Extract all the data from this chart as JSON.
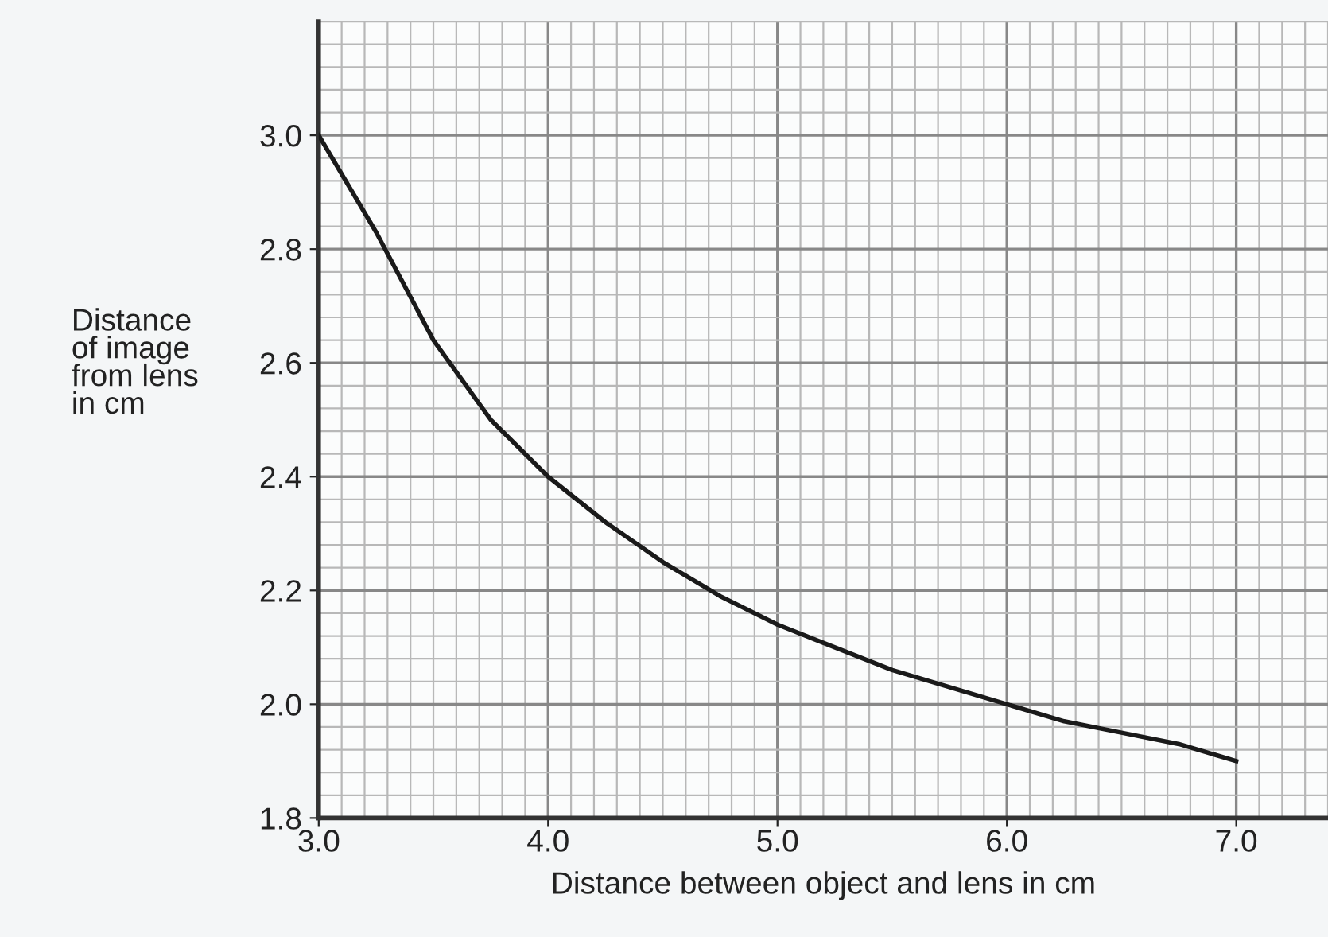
{
  "chart_data": {
    "type": "line",
    "xlabel": "Distance between object and lens in cm",
    "ylabel": "Distance\nof image\nfrom lens\nin cm",
    "x": [
      3.0,
      3.25,
      3.5,
      3.75,
      4.0,
      4.25,
      4.5,
      4.75,
      5.0,
      5.25,
      5.5,
      5.75,
      6.0,
      6.25,
      6.5,
      6.75,
      7.0
    ],
    "series": [
      {
        "color": "#1a1a1a",
        "values": [
          3.0,
          2.83,
          2.64,
          2.5,
          2.4,
          2.32,
          2.25,
          2.19,
          2.14,
          2.1,
          2.06,
          2.03,
          2.0,
          1.97,
          1.95,
          1.93,
          1.9
        ]
      }
    ],
    "xlim": [
      3.0,
      7.4
    ],
    "ylim": [
      1.8,
      3.2
    ],
    "xticks": [
      {
        "value": 3.0,
        "label": "3.0"
      },
      {
        "value": 4.0,
        "label": "4.0"
      },
      {
        "value": 5.0,
        "label": "5.0"
      },
      {
        "value": 6.0,
        "label": "6.0"
      },
      {
        "value": 7.0,
        "label": "7.0"
      }
    ],
    "yticks": [
      {
        "value": 1.8,
        "label": "1.8"
      },
      {
        "value": 2.0,
        "label": "2.0"
      },
      {
        "value": 2.2,
        "label": "2.2"
      },
      {
        "value": 2.4,
        "label": "2.4"
      },
      {
        "value": 2.6,
        "label": "2.6"
      },
      {
        "value": 2.8,
        "label": "2.8"
      },
      {
        "value": 3.0,
        "label": "3.0"
      }
    ],
    "grid": true,
    "marker": "none",
    "line_style": "solid",
    "legend": false
  }
}
